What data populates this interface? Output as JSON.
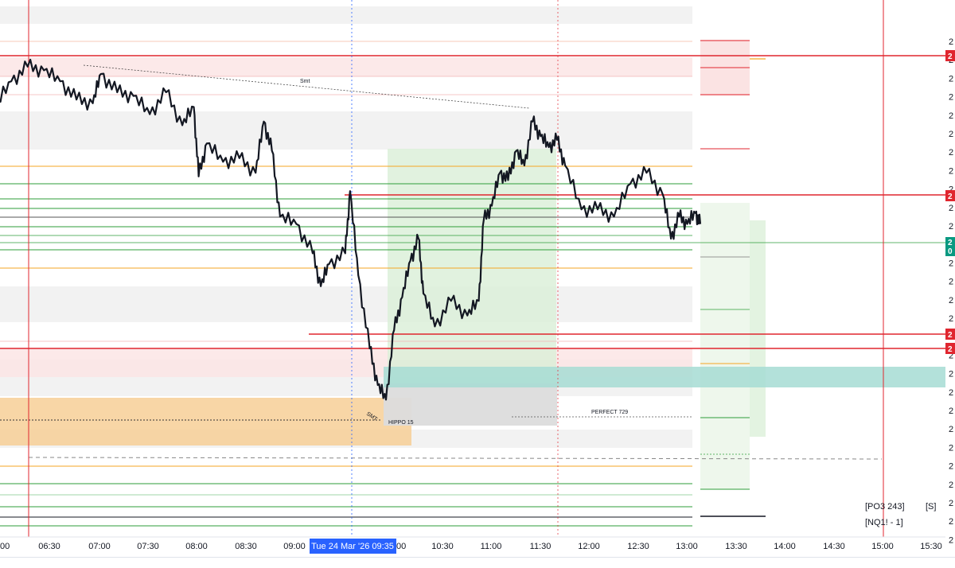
{
  "chart_data": {
    "type": "candlestick",
    "symbol_label": "[NQ1! - 1]",
    "indicator_label": "[PO3 243]",
    "indicator_flag": "[S]",
    "crosshair_date_label": "Tue 24 Mar '26  09:35",
    "x_ticks": [
      "06:30",
      "07:00",
      "07:30",
      "08:00",
      "08:30",
      "09:00",
      "10:30",
      "11:00",
      "11:30",
      "12:00",
      "12:30",
      "13:00",
      "13:30",
      "14:00",
      "14:30",
      "15:00",
      "15:30"
    ],
    "x_tick_partial_left": "00",
    "x_tick_partial_after_crosshair": "00",
    "annotations": {
      "smt_top": "Smt",
      "smt_low": "SMT",
      "hippo": "HIPPO 15",
      "perfect": "PERFECT 729"
    },
    "price_tags": [
      "2",
      "2",
      "2",
      "2",
      "2"
    ],
    "current_price_tag": {
      "line1": "2",
      "line2": "0"
    },
    "right_axis_ticks": [
      "2",
      "2",
      "2",
      "2",
      "2",
      "2",
      "2",
      "2",
      "2",
      "2",
      "2",
      "2",
      "2",
      "2",
      "2",
      "2",
      "2",
      "2",
      "2",
      "2",
      "2",
      "2",
      "2",
      "2",
      "2",
      "2",
      "2",
      "2"
    ],
    "price_path_points": [
      [
        "05:55",
        0.86
      ],
      [
        "06:05",
        0.93
      ],
      [
        "06:15",
        0.97
      ],
      [
        "06:25",
        0.96
      ],
      [
        "06:35",
        0.93
      ],
      [
        "06:45",
        0.88
      ],
      [
        "06:55",
        0.87
      ],
      [
        "07:00",
        0.95
      ],
      [
        "07:10",
        0.9
      ],
      [
        "07:20",
        0.89
      ],
      [
        "07:30",
        0.84
      ],
      [
        "07:40",
        0.9
      ],
      [
        "07:50",
        0.81
      ],
      [
        "07:57",
        0.86
      ],
      [
        "08:00",
        0.67
      ],
      [
        "08:05",
        0.76
      ],
      [
        "08:15",
        0.71
      ],
      [
        "08:25",
        0.72
      ],
      [
        "08:35",
        0.68
      ],
      [
        "08:40",
        0.82
      ],
      [
        "08:45",
        0.74
      ],
      [
        "08:50",
        0.56
      ],
      [
        "09:00",
        0.54
      ],
      [
        "09:10",
        0.46
      ],
      [
        "09:15",
        0.37
      ],
      [
        "09:20",
        0.43
      ],
      [
        "09:30",
        0.46
      ],
      [
        "09:33",
        0.63
      ],
      [
        "09:38",
        0.4
      ],
      [
        "09:45",
        0.2
      ],
      [
        "09:50",
        0.1
      ],
      [
        "09:55",
        0.06
      ],
      [
        "10:00",
        0.25
      ],
      [
        "10:05",
        0.34
      ],
      [
        "10:10",
        0.44
      ],
      [
        "10:15",
        0.5
      ],
      [
        "10:18",
        0.35
      ],
      [
        "10:25",
        0.26
      ],
      [
        "10:35",
        0.33
      ],
      [
        "10:45",
        0.29
      ],
      [
        "10:52",
        0.33
      ],
      [
        "10:55",
        0.55
      ],
      [
        "11:00",
        0.59
      ],
      [
        "11:05",
        0.68
      ],
      [
        "11:10",
        0.66
      ],
      [
        "11:15",
        0.74
      ],
      [
        "11:20",
        0.7
      ],
      [
        "11:25",
        0.82
      ],
      [
        "11:30",
        0.78
      ],
      [
        "11:35",
        0.75
      ],
      [
        "11:40",
        0.77
      ],
      [
        "11:45",
        0.7
      ],
      [
        "11:55",
        0.58
      ],
      [
        "12:05",
        0.58
      ],
      [
        "12:15",
        0.56
      ],
      [
        "12:25",
        0.65
      ],
      [
        "12:35",
        0.68
      ],
      [
        "12:45",
        0.62
      ],
      [
        "12:50",
        0.5
      ],
      [
        "12:55",
        0.56
      ],
      [
        "13:00",
        0.54
      ],
      [
        "13:05",
        0.57
      ],
      [
        "13:08",
        0.54
      ]
    ]
  },
  "colors": {
    "red_line": "#e0262f",
    "orange_line": "#f5a623",
    "green_line": "#2e9e3a",
    "candle": "#131722",
    "green_zone": "#d9efd7",
    "orange_zone": "#f7cf97",
    "teal_zone": "#a6dcd4",
    "gray_zone": "#dcdcdc",
    "pink_zone": "#fbe3e3",
    "crosshair_label_bg": "#2962ff",
    "axis_tag_red": "#e0262f",
    "axis_tag_teal": "#089981"
  }
}
